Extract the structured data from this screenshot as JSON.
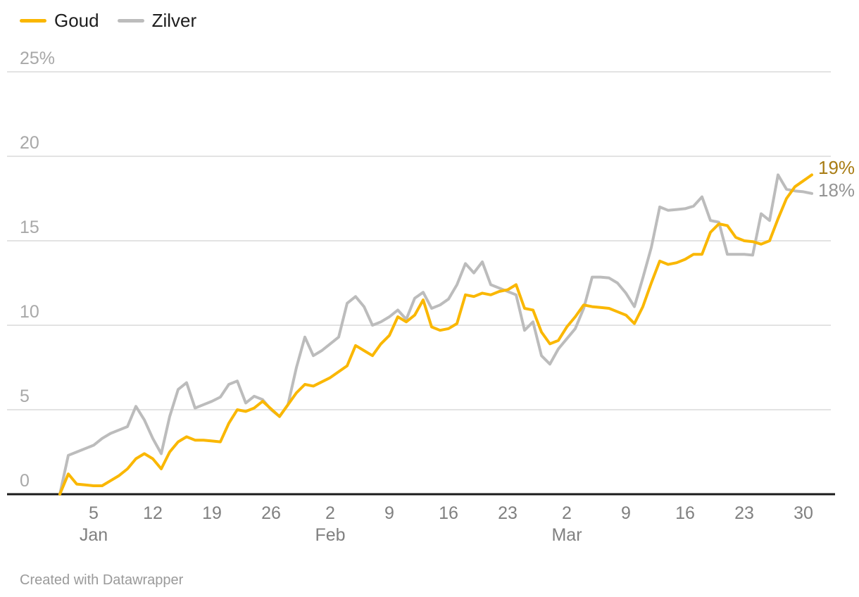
{
  "footer": {
    "credit": "Created with Datawrapper"
  },
  "chart_data": {
    "type": "line",
    "title": "",
    "x_unit": "date",
    "x_start": "Jan 1",
    "x_end": "Mar 31",
    "ylim": [
      0,
      25
    ],
    "grid": true,
    "legend_position": "top-left",
    "y_ticks": [
      {
        "value": 25,
        "label": "25%"
      },
      {
        "value": 20,
        "label": "20"
      },
      {
        "value": 15,
        "label": "15"
      },
      {
        "value": 10,
        "label": "10"
      },
      {
        "value": 5,
        "label": "5"
      },
      {
        "value": 0,
        "label": "0"
      }
    ],
    "x_ticks": [
      {
        "index": 4,
        "label": "5",
        "month": "Jan"
      },
      {
        "index": 11,
        "label": "12"
      },
      {
        "index": 18,
        "label": "19"
      },
      {
        "index": 25,
        "label": "26"
      },
      {
        "index": 32,
        "label": "2",
        "month": "Feb"
      },
      {
        "index": 39,
        "label": "9"
      },
      {
        "index": 46,
        "label": "16"
      },
      {
        "index": 53,
        "label": "23"
      },
      {
        "index": 60,
        "label": "2",
        "month": "Mar"
      },
      {
        "index": 67,
        "label": "9"
      },
      {
        "index": 74,
        "label": "16"
      },
      {
        "index": 81,
        "label": "23"
      },
      {
        "index": 88,
        "label": "30"
      }
    ],
    "series": [
      {
        "name": "Goud",
        "color": "#FAB700",
        "label_color": "#A87C13",
        "end_label": "19%",
        "values": [
          0,
          1.2,
          0.6,
          0.55,
          0.5,
          0.5,
          0.8,
          1.1,
          1.5,
          2.1,
          2.4,
          2.1,
          1.5,
          2.5,
          3.1,
          3.4,
          3.2,
          3.2,
          3.15,
          3.1,
          4.2,
          5,
          4.9,
          5.1,
          5.5,
          5.05,
          4.6,
          5.3,
          6,
          6.5,
          6.4,
          6.65,
          6.9,
          7.25,
          7.6,
          8.8,
          8.5,
          8.2,
          8.9,
          9.4,
          10.5,
          10.2,
          10.6,
          11.5,
          9.9,
          9.7,
          9.8,
          10.1,
          11.8,
          11.7,
          11.9,
          11.8,
          12,
          12.1,
          12.4,
          11,
          10.9,
          9.6,
          8.9,
          9.1,
          9.9,
          10.5,
          11.2,
          11.1,
          11.05,
          11,
          10.8,
          10.6,
          10.1,
          11.1,
          12.5,
          13.8,
          13.6,
          13.7,
          13.9,
          14.2,
          14.2,
          15.5,
          16,
          15.9,
          15.2,
          15,
          14.95,
          14.8,
          15,
          16.3,
          17.5,
          18.2,
          18.55,
          18.9
        ]
      },
      {
        "name": "Zilver",
        "color": "#BCBCBC",
        "label_color": "#949494",
        "end_label": "18%",
        "values": [
          0,
          2.3,
          2.5,
          2.7,
          2.9,
          3.3,
          3.6,
          3.8,
          4,
          5.2,
          4.4,
          3.3,
          2.4,
          4.6,
          6.2,
          6.6,
          5.1,
          5.3,
          5.5,
          5.75,
          6.5,
          6.7,
          5.4,
          5.8,
          5.6,
          5,
          4.6,
          5.3,
          7.5,
          9.3,
          8.2,
          8.5,
          8.9,
          9.3,
          11.3,
          11.7,
          11.1,
          10,
          10.2,
          10.5,
          10.9,
          10.35,
          11.6,
          11.95,
          11,
          11.2,
          11.55,
          12.4,
          13.65,
          13.1,
          13.75,
          12.4,
          12.2,
          12,
          11.8,
          9.7,
          10.2,
          8.2,
          7.7,
          8.6,
          9.2,
          9.8,
          11,
          12.85,
          12.85,
          12.8,
          12.5,
          11.9,
          11.1,
          12.8,
          14.6,
          17,
          16.8,
          16.85,
          16.9,
          17.05,
          17.6,
          16.2,
          16.1,
          14.2,
          14.2,
          14.2,
          14.15,
          16.6,
          16.2,
          18.9,
          18.05,
          17.95,
          17.9,
          17.8
        ]
      }
    ]
  }
}
